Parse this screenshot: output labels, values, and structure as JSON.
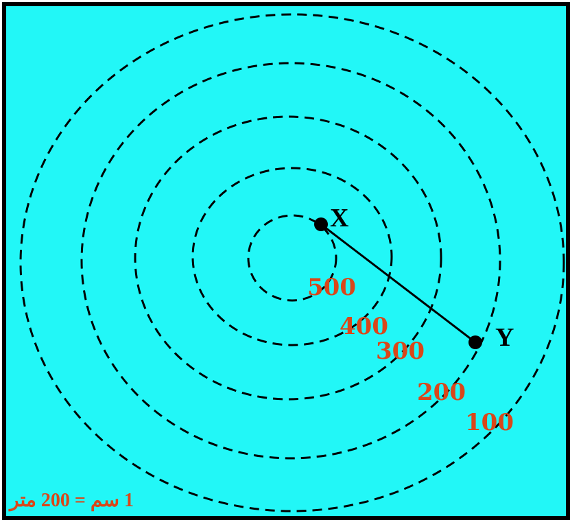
{
  "colors": {
    "background": "#22f7f7",
    "border": "#000000",
    "contour_line": "#000000",
    "contour_label": "#d9471a",
    "scale_text": "#d9471a",
    "point": "#000000"
  },
  "contours": [
    {
      "label": "100"
    },
    {
      "label": "200"
    },
    {
      "label": "300"
    },
    {
      "label": "400"
    },
    {
      "label": "500"
    }
  ],
  "points": {
    "x": {
      "label": "X"
    },
    "y": {
      "label": "Y"
    }
  },
  "scale": {
    "text": "1 سم = 200 متر"
  }
}
